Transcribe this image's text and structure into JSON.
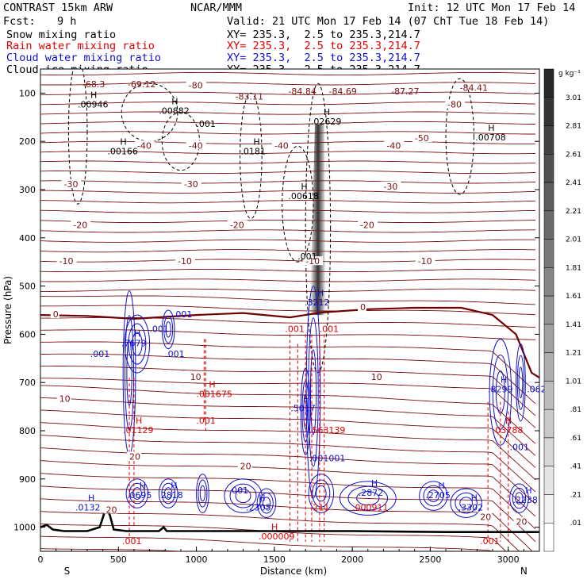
{
  "header": {
    "model": "CONTRAST 15km ARW",
    "org": "NCAR/MMM",
    "init": "Init: 12 UTC Mon 17 Feb 14",
    "fcst_label": "Fcst:",
    "fcst_value": "9 h",
    "valid": "Valid: 21 UTC Mon 17 Feb 14 (07 ChT Tue 18 Feb 14)",
    "fields": [
      {
        "name": "Snow mixing ratio",
        "xy": "",
        "color": "#000000"
      },
      {
        "name": "Rain water mixing ratio",
        "xy": "XY= 235.3,  2.5 to 235.3,214.7",
        "color": "#e00000"
      },
      {
        "name": "Cloud water mixing ratio",
        "xy": "XY= 235.3,  2.5 to 235.3,214.7",
        "color": "#1010d0"
      },
      {
        "name": "Cloud ice mixing ratio",
        "xy": "XY= 235.3,  2.5 to 235.3,214.7",
        "color": "#000000"
      }
    ],
    "xy_top": "XY= 235.3,  2.5 to 235.3,214.7"
  },
  "chart_data": {
    "type": "contour",
    "xlabel": "Distance (km)",
    "ylabel": "Pressure (hPa)",
    "xlim": [
      0,
      3200
    ],
    "ylim": [
      1050,
      50
    ],
    "xticks": [
      0,
      500,
      1000,
      1500,
      2000,
      2500,
      3000
    ],
    "yticks": [
      100,
      200,
      300,
      400,
      500,
      600,
      700,
      800,
      900,
      1000
    ],
    "end_labels": {
      "left": "S",
      "right": "N"
    },
    "temperature_contours": [
      {
        "value": -80,
        "label": "-80",
        "x": 950,
        "p": 85
      },
      {
        "value": -80,
        "label": "-80",
        "x": 2610,
        "p": 125
      },
      {
        "value": -50,
        "label": "-50",
        "x": 2400,
        "p": 195
      },
      {
        "value": -40,
        "label": "-40",
        "x": 620,
        "p": 210
      },
      {
        "value": -40,
        "label": "-40",
        "x": 950,
        "p": 210
      },
      {
        "value": -40,
        "label": "-40",
        "x": 1500,
        "p": 210
      },
      {
        "value": -40,
        "label": "-40",
        "x": 2220,
        "p": 210
      },
      {
        "value": -30,
        "label": "-30",
        "x": 150,
        "p": 290
      },
      {
        "value": -30,
        "label": "-30",
        "x": 920,
        "p": 290
      },
      {
        "value": -30,
        "label": "-30",
        "x": 2200,
        "p": 295
      },
      {
        "value": -20,
        "label": "-20",
        "x": 210,
        "p": 375
      },
      {
        "value": -20,
        "label": "-20",
        "x": 1215,
        "p": 375
      },
      {
        "value": -20,
        "label": "-20",
        "x": 2050,
        "p": 375
      },
      {
        "value": -10,
        "label": "-10",
        "x": 120,
        "p": 450
      },
      {
        "value": -10,
        "label": "-10",
        "x": 880,
        "p": 450
      },
      {
        "value": -10,
        "label": "-10",
        "x": 1700,
        "p": 450
      },
      {
        "value": -10,
        "label": "-10",
        "x": 2420,
        "p": 450
      },
      {
        "value": 0,
        "label": "0",
        "x": 80,
        "p": 560
      },
      {
        "value": 0,
        "label": "0",
        "x": 2050,
        "p": 545
      },
      {
        "value": 10,
        "label": "10",
        "x": 120,
        "p": 735
      },
      {
        "value": 10,
        "label": "10",
        "x": 960,
        "p": 690
      },
      {
        "value": 10,
        "label": "10",
        "x": 2120,
        "p": 690
      },
      {
        "value": 20,
        "label": "20",
        "x": 420,
        "p": 965
      },
      {
        "value": 20,
        "label": "20",
        "x": 570,
        "p": 855
      },
      {
        "value": 20,
        "label": "20",
        "x": 1280,
        "p": 875
      },
      {
        "value": 20,
        "label": "20",
        "x": 2820,
        "p": 980
      },
      {
        "value": 20,
        "label": "20",
        "x": 3050,
        "p": 990
      }
    ],
    "maxima": [
      {
        "field": "cloud_ice",
        "value": "-68.3",
        "x": 320,
        "p": 83,
        "hmark": false
      },
      {
        "field": "cloud_ice",
        "value": "-69.12",
        "x": 610,
        "p": 83,
        "hmark": false
      },
      {
        "field": "cloud_ice",
        "value": "-83.11",
        "x": 1300,
        "p": 108,
        "hmark": false
      },
      {
        "field": "cloud_ice",
        "value": "-84.84",
        "x": 1640,
        "p": 98,
        "hmark": false
      },
      {
        "field": "cloud_ice",
        "value": "-84.69",
        "x": 1900,
        "p": 98,
        "hmark": false
      },
      {
        "field": "cloud_ice",
        "value": "-87.27",
        "x": 2300,
        "p": 98,
        "hmark": false
      },
      {
        "field": "cloud_ice",
        "value": "-84.41",
        "x": 2740,
        "p": 90,
        "hmark": false
      },
      {
        "field": "snow",
        "value": ".00946",
        "x": 290,
        "p": 125,
        "hmark": true
      },
      {
        "field": "snow",
        "value": ".00882",
        "x": 810,
        "p": 138,
        "hmark": true
      },
      {
        "field": "snow",
        "value": ".001",
        "x": 1050,
        "p": 165,
        "hmark": false
      },
      {
        "field": "snow",
        "value": ".02629",
        "x": 1785,
        "p": 160,
        "hmark": true
      },
      {
        "field": "snow",
        "value": ".00708",
        "x": 2840,
        "p": 193,
        "hmark": true
      },
      {
        "field": "snow",
        "value": ".00166",
        "x": 480,
        "p": 222,
        "hmark": true
      },
      {
        "field": "snow",
        "value": ".0181",
        "x": 1335,
        "p": 222,
        "hmark": true
      },
      {
        "field": "snow",
        "value": ".00618",
        "x": 1640,
        "p": 315,
        "hmark": true
      },
      {
        "field": "snow",
        "value": ".001",
        "x": 1700,
        "p": 440,
        "hmark": false
      },
      {
        "field": "cloud",
        "value": ".001",
        "x": 900,
        "p": 560,
        "hmark": false
      },
      {
        "field": "cloud",
        "value": ".3212",
        "x": 1745,
        "p": 535,
        "hmark": true
      },
      {
        "field": "cloud",
        "value": ".7679",
        "x": 570,
        "p": 620,
        "hmark": true
      },
      {
        "field": "cloud",
        "value": ".001",
        "x": 750,
        "p": 590,
        "hmark": false
      },
      {
        "field": "cloud",
        "value": ".001",
        "x": 370,
        "p": 642,
        "hmark": false
      },
      {
        "field": "cloud",
        "value": ".001",
        "x": 850,
        "p": 642,
        "hmark": false
      },
      {
        "field": "rain",
        "value": ".001",
        "x": 1620,
        "p": 590,
        "hmark": false
      },
      {
        "field": "rain",
        "value": ".001",
        "x": 1840,
        "p": 590,
        "hmark": false
      },
      {
        "field": "rain",
        "value": ".001675",
        "x": 1050,
        "p": 725,
        "hmark": true
      },
      {
        "field": "rain",
        "value": ".01129",
        "x": 580,
        "p": 800,
        "hmark": true
      },
      {
        "field": "rain",
        "value": ".001",
        "x": 1050,
        "p": 780,
        "hmark": false
      },
      {
        "field": "cloud",
        "value": ".5017",
        "x": 1655,
        "p": 755,
        "hmark": true
      },
      {
        "field": "rain",
        "value": ".563139",
        "x": 1775,
        "p": 800,
        "hmark": false
      },
      {
        "field": "cloud",
        "value": ".8299",
        "x": 2920,
        "p": 715,
        "hmark": true
      },
      {
        "field": "cloud",
        "value": ".062",
        "x": 3170,
        "p": 715,
        "hmark": false
      },
      {
        "field": "rain",
        "value": ".03788",
        "x": 2950,
        "p": 800,
        "hmark": true
      },
      {
        "field": "cloud",
        "value": ".001",
        "x": 3060,
        "p": 835,
        "hmark": false
      },
      {
        "field": "cloud",
        "value": ".001001",
        "x": 1775,
        "p": 858,
        "hmark": false
      },
      {
        "field": "cloud",
        "value": ".0132",
        "x": 275,
        "p": 960,
        "hmark": true
      },
      {
        "field": "cloud",
        "value": ".0695",
        "x": 605,
        "p": 935,
        "hmark": true
      },
      {
        "field": "cloud",
        "value": ".2818",
        "x": 805,
        "p": 935,
        "hmark": true
      },
      {
        "field": "cloud",
        "value": ".001",
        "x": 1260,
        "p": 925,
        "hmark": false
      },
      {
        "field": "cloud",
        "value": ".2305",
        "x": 1370,
        "p": 960,
        "hmark": true
      },
      {
        "field": "rain",
        "value": ".211",
        "x": 1780,
        "p": 960,
        "hmark": false
      },
      {
        "field": "cloud",
        "value": ".2872",
        "x": 2090,
        "p": 930,
        "hmark": true
      },
      {
        "field": "rain",
        "value": ".000911",
        "x": 2050,
        "p": 960,
        "hmark": false
      },
      {
        "field": "cloud",
        "value": ".2705",
        "x": 2520,
        "p": 935,
        "hmark": true
      },
      {
        "field": "cloud",
        "value": ".3302",
        "x": 2730,
        "p": 960,
        "hmark": true
      },
      {
        "field": "cloud",
        "value": ".2238",
        "x": 3080,
        "p": 945,
        "hmark": true
      },
      {
        "field": "rain",
        "value": ".000009",
        "x": 1450,
        "p": 1020,
        "hmark": true
      },
      {
        "field": "rain",
        "value": ".001",
        "x": 575,
        "p": 1030,
        "hmark": false
      },
      {
        "field": "rain",
        "value": ".001",
        "x": 2870,
        "p": 1030,
        "hmark": false
      }
    ],
    "colorbar": {
      "unit": "g kg⁻¹",
      "labels": [
        "3.01",
        "2.81",
        "2.61",
        "2.41",
        "2.21",
        "2.01",
        "1.81",
        "1.61",
        "1.41",
        "1.21",
        "1.01",
        ".81",
        ".61",
        ".41",
        ".21",
        ".01"
      ]
    }
  }
}
